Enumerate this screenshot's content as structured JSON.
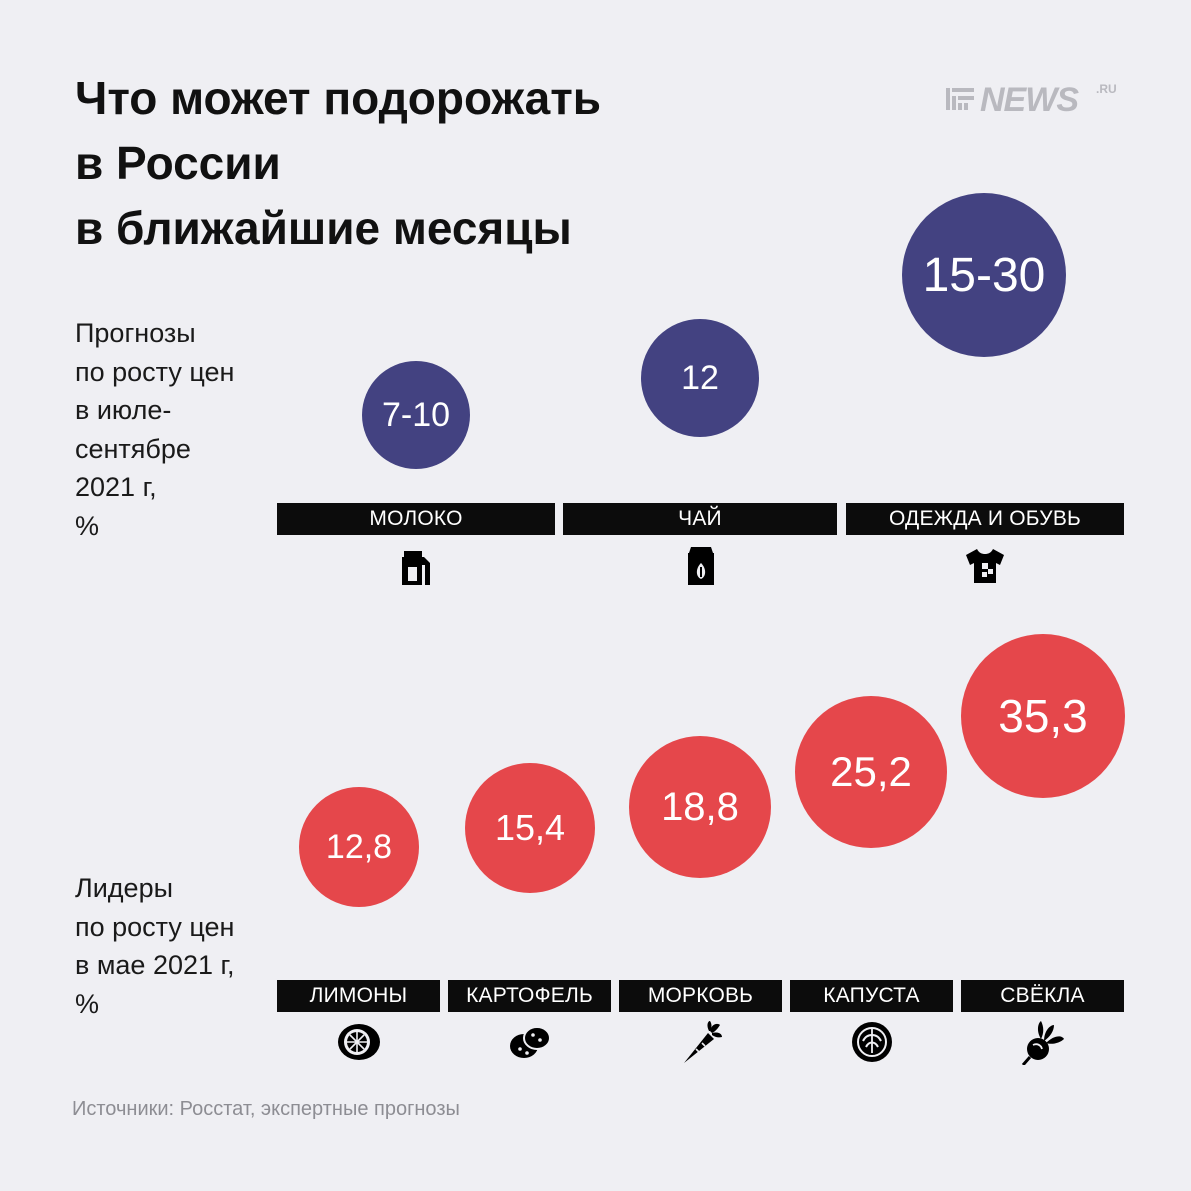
{
  "title_lines": [
    "Что может подорожать",
    "в России",
    "в ближайшие месяцы"
  ],
  "logo": {
    "text": "NEWS",
    "suffix": ".RU"
  },
  "colors": {
    "forecast": "#434281",
    "leaders": "#e5474b",
    "bar": "#0c0c0c",
    "background": "#efeff3"
  },
  "forecast_label_lines": [
    "Прогнозы",
    "по росту цен",
    "в июле-",
    "сентябре",
    "2021 г,",
    "%"
  ],
  "leaders_label_lines": [
    "Лидеры",
    "по росту цен",
    "в мае 2021 г,",
    "%"
  ],
  "source": "Источники: Росстат, экспертные прогнозы",
  "chart_data": [
    {
      "type": "bubble",
      "categories": [
        "МОЛОКО",
        "ЧАЙ",
        "ОДЕЖДА И ОБУВЬ"
      ],
      "values": [
        "7-10",
        "12",
        "15-30"
      ],
      "icons": [
        "milk-carton-icon",
        "tea-pack-icon",
        "t-shirt-icon"
      ],
      "color": "#434281"
    },
    {
      "type": "bubble",
      "categories": [
        "ЛИМОНЫ",
        "КАРТОФЕЛЬ",
        "МОРКОВЬ",
        "КАПУСТА",
        "СВЁКЛА"
      ],
      "values": [
        "12,8",
        "15,4",
        "18,8",
        "25,2",
        "35,3"
      ],
      "icons": [
        "lemon-icon",
        "potato-icon",
        "carrot-icon",
        "cabbage-icon",
        "beet-icon"
      ],
      "color": "#e5474b"
    }
  ]
}
